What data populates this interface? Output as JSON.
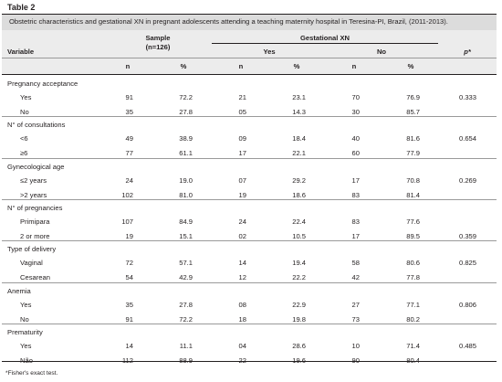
{
  "table_label": "Table 2",
  "caption": "Obstetric characteristics and gestational XN in pregnant adolescents attending a teaching maternity hospital in Teresina-PI, Brazil, (2011-2013).",
  "header": {
    "variable": "Variable",
    "sample": "Sample",
    "sample_n": "(n=126)",
    "gestational": "Gestational XN",
    "yes": "Yes",
    "no": "No",
    "p": "p*",
    "n": "n",
    "pct": "%"
  },
  "sections": [
    {
      "title": "Pregnancy acceptance",
      "rows": [
        {
          "label": "Yes",
          "n": "91",
          "pct": "72.2",
          "yes_n": "21",
          "yes_pct": "23.1",
          "no_n": "70",
          "no_pct": "76.9",
          "p": "0.333"
        },
        {
          "label": "No",
          "n": "35",
          "pct": "27.8",
          "yes_n": "05",
          "yes_pct": "14.3",
          "no_n": "30",
          "no_pct": "85.7",
          "p": ""
        }
      ]
    },
    {
      "title": "N° of consultations",
      "rows": [
        {
          "label": "<6",
          "n": "49",
          "pct": "38.9",
          "yes_n": "09",
          "yes_pct": "18.4",
          "no_n": "40",
          "no_pct": "81.6",
          "p": "0.654"
        },
        {
          "label": "≥6",
          "n": "77",
          "pct": "61.1",
          "yes_n": "17",
          "yes_pct": "22.1",
          "no_n": "60",
          "no_pct": "77.9",
          "p": ""
        }
      ]
    },
    {
      "title": "Gynecological age",
      "rows": [
        {
          "label": "≤2 years",
          "n": "24",
          "pct": "19.0",
          "yes_n": "07",
          "yes_pct": "29.2",
          "no_n": "17",
          "no_pct": "70.8",
          "p": "0.269"
        },
        {
          "label": ">2 years",
          "n": "102",
          "pct": "81.0",
          "yes_n": "19",
          "yes_pct": "18.6",
          "no_n": "83",
          "no_pct": "81.4",
          "p": ""
        }
      ]
    },
    {
      "title": "N° of pregnancies",
      "rows": [
        {
          "label": "Primipara",
          "n": "107",
          "pct": "84.9",
          "yes_n": "24",
          "yes_pct": "22.4",
          "no_n": "83",
          "no_pct": "77.6",
          "p": ""
        },
        {
          "label": "2 or more",
          "n": "19",
          "pct": "15.1",
          "yes_n": "02",
          "yes_pct": "10.5",
          "no_n": "17",
          "no_pct": "89.5",
          "p": "0.359"
        }
      ]
    },
    {
      "title": "Type of delivery",
      "rows": [
        {
          "label": "Vaginal",
          "n": "72",
          "pct": "57.1",
          "yes_n": "14",
          "yes_pct": "19.4",
          "no_n": "58",
          "no_pct": "80.6",
          "p": "0.825"
        },
        {
          "label": "Cesarean",
          "n": "54",
          "pct": "42.9",
          "yes_n": "12",
          "yes_pct": "22.2",
          "no_n": "42",
          "no_pct": "77.8",
          "p": ""
        }
      ]
    },
    {
      "title": "Anemia",
      "rows": [
        {
          "label": "Yes",
          "n": "35",
          "pct": "27.8",
          "yes_n": "08",
          "yes_pct": "22.9",
          "no_n": "27",
          "no_pct": "77.1",
          "p": "0.806"
        },
        {
          "label": "No",
          "n": "91",
          "pct": "72.2",
          "yes_n": "18",
          "yes_pct": "19.8",
          "no_n": "73",
          "no_pct": "80.2",
          "p": ""
        }
      ]
    },
    {
      "title": "Prematurity",
      "rows": [
        {
          "label": "Yes",
          "n": "14",
          "pct": "11.1",
          "yes_n": "04",
          "yes_pct": "28.6",
          "no_n": "10",
          "no_pct": "71.4",
          "p": "0.485"
        },
        {
          "label": "Não",
          "n": "112",
          "pct": "88.9",
          "yes_n": "22",
          "yes_pct": "19.6",
          "no_n": "90",
          "no_pct": "80.4",
          "p": ""
        }
      ]
    }
  ],
  "footnote": "*Fisher's exact test."
}
